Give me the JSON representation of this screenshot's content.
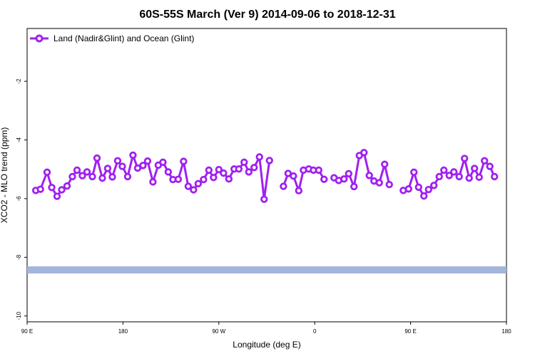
{
  "chart_data": {
    "type": "line",
    "title": "60S-55S March (Ver 9)   2014-09-06 to 2018-12-31",
    "xlabel": "Longitude (deg E)",
    "ylabel": "XCO2 - MLO trend (ppm)",
    "xlim": [
      90,
      450
    ],
    "ylim": [
      -10.2,
      -0.2
    ],
    "x_ticks": [
      {
        "value": 90,
        "label": "90 E"
      },
      {
        "value": 162,
        "label": "180"
      },
      {
        "value": 234,
        "label": "90 W"
      },
      {
        "value": 306,
        "label": "0"
      },
      {
        "value": 378,
        "label": "90 E"
      },
      {
        "value": 450,
        "label": "180"
      }
    ],
    "y_ticks": [
      {
        "value": -2,
        "label": "-2"
      },
      {
        "value": -4,
        "label": "-4"
      },
      {
        "value": -6,
        "label": "-6"
      },
      {
        "value": -8,
        "label": "-8"
      },
      {
        "value": -10,
        "label": "-10"
      }
    ],
    "legend": {
      "position": "top-left"
    },
    "series": [
      {
        "name": "Land (Nadir&Glint) and Ocean (Glint)",
        "color": "#a020f0",
        "segments": [
          [
            [
              96.5,
              -5.72
            ],
            [
              100.0,
              -5.68
            ],
            [
              105.0,
              -5.1
            ],
            [
              108.5,
              -5.62
            ],
            [
              112.5,
              -5.92
            ],
            [
              116.0,
              -5.7
            ],
            [
              120.0,
              -5.57
            ],
            [
              124.0,
              -5.25
            ],
            [
              127.5,
              -5.03
            ],
            [
              131.5,
              -5.22
            ],
            [
              135.0,
              -5.09
            ],
            [
              139.0,
              -5.25
            ],
            [
              142.5,
              -4.62
            ],
            [
              146.5,
              -5.3
            ],
            [
              150.5,
              -4.97
            ],
            [
              154.0,
              -5.26
            ],
            [
              158.0,
              -4.71
            ],
            [
              161.5,
              -4.9
            ],
            [
              165.5,
              -5.25
            ],
            [
              169.5,
              -4.52
            ],
            [
              173.0,
              -4.96
            ],
            [
              177.0,
              -4.87
            ],
            [
              180.5,
              -4.72
            ],
            [
              184.5,
              -5.43
            ],
            [
              188.5,
              -4.86
            ],
            [
              192.0,
              -4.76
            ],
            [
              196.0,
              -5.09
            ],
            [
              199.5,
              -5.35
            ],
            [
              203.5,
              -5.34
            ],
            [
              207.5,
              -4.73
            ],
            [
              211.0,
              -5.58
            ],
            [
              215.0,
              -5.7
            ],
            [
              218.5,
              -5.49
            ],
            [
              222.5,
              -5.35
            ],
            [
              226.5,
              -5.03
            ],
            [
              230.0,
              -5.28
            ],
            [
              234.0,
              -5.01
            ],
            [
              237.5,
              -5.13
            ],
            [
              241.5,
              -5.33
            ],
            [
              245.5,
              -4.99
            ],
            [
              249.0,
              -4.99
            ],
            [
              253.0,
              -4.76
            ],
            [
              256.5,
              -5.09
            ],
            [
              260.5,
              -4.94
            ],
            [
              264.5,
              -4.58
            ],
            [
              268.0,
              -6.02
            ],
            [
              272.0,
              -4.7
            ]
          ],
          [
            [
              282.5,
              -5.58
            ],
            [
              286.0,
              -5.14
            ],
            [
              290.0,
              -5.23
            ],
            [
              294.0,
              -5.73
            ],
            [
              297.5,
              -5.03
            ],
            [
              301.5,
              -4.99
            ],
            [
              305.0,
              -5.03
            ],
            [
              309.0,
              -5.03
            ],
            [
              313.0,
              -5.34
            ]
          ],
          [
            [
              320.5,
              -5.29
            ],
            [
              324.0,
              -5.38
            ],
            [
              328.0,
              -5.33
            ],
            [
              331.5,
              -5.15
            ],
            [
              335.5,
              -5.59
            ],
            [
              339.5,
              -4.53
            ],
            [
              343.0,
              -4.43
            ],
            [
              347.0,
              -5.21
            ],
            [
              350.5,
              -5.4
            ],
            [
              354.5,
              -5.46
            ],
            [
              358.5,
              -4.83
            ],
            [
              362.0,
              -5.52
            ]
          ],
          [
            [
              372.5,
              -5.72
            ],
            [
              376.5,
              -5.67
            ],
            [
              380.5,
              -5.1
            ],
            [
              384.0,
              -5.61
            ],
            [
              388.0,
              -5.91
            ],
            [
              391.5,
              -5.69
            ],
            [
              395.5,
              -5.55
            ],
            [
              399.5,
              -5.25
            ],
            [
              403.0,
              -5.03
            ],
            [
              407.0,
              -5.21
            ],
            [
              410.5,
              -5.09
            ],
            [
              414.5,
              -5.25
            ],
            [
              418.5,
              -4.63
            ],
            [
              422.0,
              -5.3
            ],
            [
              426.0,
              -4.97
            ],
            [
              429.5,
              -5.27
            ],
            [
              433.5,
              -4.71
            ],
            [
              437.5,
              -4.9
            ],
            [
              441.0,
              -5.25
            ]
          ]
        ]
      },
      {
        "name": "",
        "color": "#a2b5db",
        "style": "band",
        "x": [
          90,
          450
        ],
        "y": -8.43
      }
    ]
  }
}
